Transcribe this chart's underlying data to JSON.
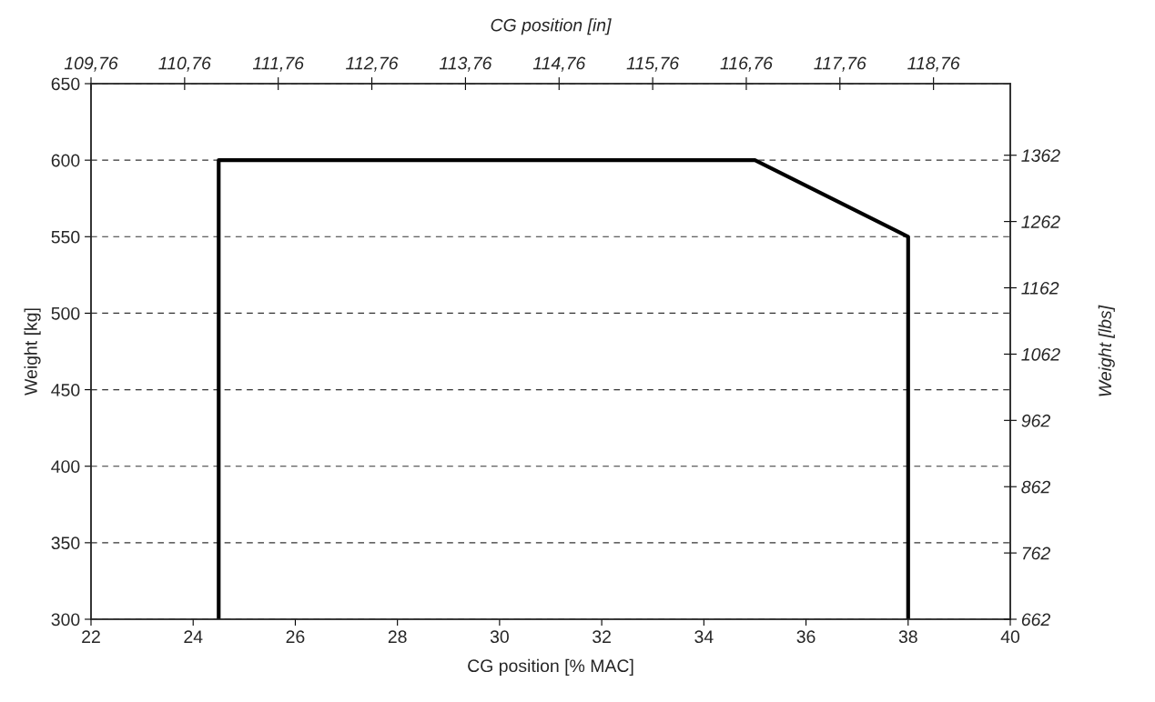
{
  "chart_data": {
    "type": "line",
    "xlabel": "CG position [% MAC]",
    "ylabel": "Weight [kg]",
    "x2label": "CG position [in]",
    "y2label": "Weight [lbs]",
    "xlim": [
      22,
      40
    ],
    "xticks": [
      22,
      24,
      26,
      28,
      30,
      32,
      34,
      36,
      38,
      40
    ],
    "ylim": [
      300,
      650
    ],
    "yticks": [
      300,
      350,
      400,
      450,
      500,
      550,
      600,
      650
    ],
    "x2lim": [
      109.76,
      119.58
    ],
    "x2ticks": [
      {
        "value": 109.76,
        "label": "109,76"
      },
      {
        "value": 110.76,
        "label": "110,76"
      },
      {
        "value": 111.76,
        "label": "111,76"
      },
      {
        "value": 112.76,
        "label": "112,76"
      },
      {
        "value": 113.76,
        "label": "113,76"
      },
      {
        "value": 114.76,
        "label": "114,76"
      },
      {
        "value": 115.76,
        "label": "115,76"
      },
      {
        "value": 116.76,
        "label": "116,76"
      },
      {
        "value": 117.76,
        "label": "117,76"
      },
      {
        "value": 118.76,
        "label": "118,76"
      }
    ],
    "y2lim": [
      662,
      1470
    ],
    "y2ticks": [
      662,
      762,
      862,
      962,
      1062,
      1162,
      1262,
      1362
    ],
    "grid": "y",
    "marker": "none",
    "line_style": "solid",
    "series": [
      {
        "color": "#000000",
        "x": [
          24.5,
          24.5,
          35,
          38,
          38
        ],
        "values": [
          300,
          600,
          600,
          550,
          300
        ]
      }
    ]
  }
}
